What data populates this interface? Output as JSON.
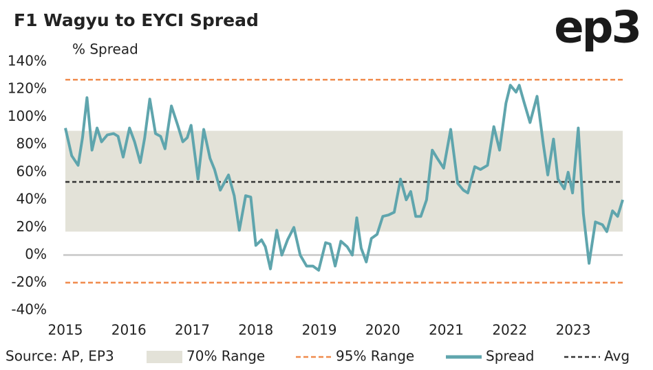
{
  "chart_data": {
    "type": "line",
    "title": "F1 Wagyu to EYCI Spread",
    "logo": "ep3",
    "y_label": "% Spread",
    "source": "Source: AP, EP3",
    "x": [
      2015.0,
      2015.1,
      2015.2,
      2015.27,
      2015.34,
      2015.42,
      2015.5,
      2015.57,
      2015.66,
      2015.76,
      2015.83,
      2015.91,
      2016.01,
      2016.09,
      2016.18,
      2016.25,
      2016.33,
      2016.42,
      2016.5,
      2016.57,
      2016.67,
      2016.77,
      2016.85,
      2016.92,
      2016.98,
      2017.09,
      2017.18,
      2017.28,
      2017.35,
      2017.44,
      2017.57,
      2017.66,
      2017.74,
      2017.84,
      2017.92,
      2018.0,
      2018.09,
      2018.15,
      2018.23,
      2018.33,
      2018.41,
      2018.5,
      2018.6,
      2018.7,
      2018.8,
      2018.9,
      2018.99,
      2019.1,
      2019.17,
      2019.25,
      2019.34,
      2019.44,
      2019.52,
      2019.59,
      2019.66,
      2019.74,
      2019.82,
      2019.91,
      2020.0,
      2020.09,
      2020.18,
      2020.28,
      2020.37,
      2020.44,
      2020.52,
      2020.6,
      2020.69,
      2020.78,
      2020.86,
      2020.96,
      2021.07,
      2021.18,
      2021.27,
      2021.34,
      2021.45,
      2021.54,
      2021.65,
      2021.75,
      2021.84,
      2021.94,
      2022.01,
      2022.1,
      2022.15,
      2022.23,
      2022.32,
      2022.43,
      2022.53,
      2022.6,
      2022.69,
      2022.76,
      2022.86,
      2022.92,
      2022.99,
      2023.08,
      2023.16,
      2023.25,
      2023.35,
      2023.46,
      2023.53,
      2023.62,
      2023.7,
      2023.78
    ],
    "series": [
      {
        "name": "Spread",
        "color": "#5fa5ad",
        "values": [
          92,
          72,
          65,
          85,
          114,
          76,
          92,
          82,
          87,
          88,
          86,
          71,
          92,
          82,
          67,
          85,
          113,
          88,
          86,
          77,
          108,
          94,
          82,
          85,
          94,
          55,
          91,
          70,
          62,
          47,
          58,
          43,
          18,
          43,
          42,
          7,
          11,
          6,
          -10,
          18,
          0,
          11,
          20,
          0,
          -8,
          -8,
          -11,
          9,
          8,
          -8,
          10,
          6,
          0,
          27,
          5,
          -5,
          12,
          15,
          28,
          29,
          31,
          55,
          40,
          46,
          28,
          28,
          40,
          76,
          70,
          63,
          91,
          52,
          47,
          45,
          64,
          62,
          65,
          93,
          76,
          110,
          123,
          118,
          123,
          110,
          96,
          115,
          80,
          58,
          84,
          55,
          48,
          60,
          45,
          92,
          30,
          -6,
          24,
          22,
          17,
          32,
          28,
          40
        ]
      }
    ],
    "range_70": {
      "name": "70% Range",
      "color": "#e3e2d8",
      "values": [
        17,
        90
      ]
    },
    "range_95": {
      "name": "95% Range",
      "color": "#f08a4b",
      "values": [
        -20,
        127
      ]
    },
    "avg": {
      "name": "Avg",
      "color": "#333333",
      "value": 53
    },
    "xlim": [
      2015,
      2023.78
    ],
    "xticks": [
      2015,
      2016,
      2017,
      2018,
      2019,
      2020,
      2021,
      2022,
      2023
    ],
    "ylim": [
      -40,
      140
    ],
    "yticks": [
      {
        "value": -40,
        "label": "-40%"
      },
      {
        "value": -20,
        "label": "-20%"
      },
      {
        "value": 0,
        "label": "0%"
      },
      {
        "value": 20,
        "label": "20%"
      },
      {
        "value": 40,
        "label": "40%"
      },
      {
        "value": 60,
        "label": "60%"
      },
      {
        "value": 80,
        "label": "80%"
      },
      {
        "value": 100,
        "label": "100%"
      },
      {
        "value": 120,
        "label": "120%"
      },
      {
        "value": 140,
        "label": "140%"
      }
    ]
  }
}
